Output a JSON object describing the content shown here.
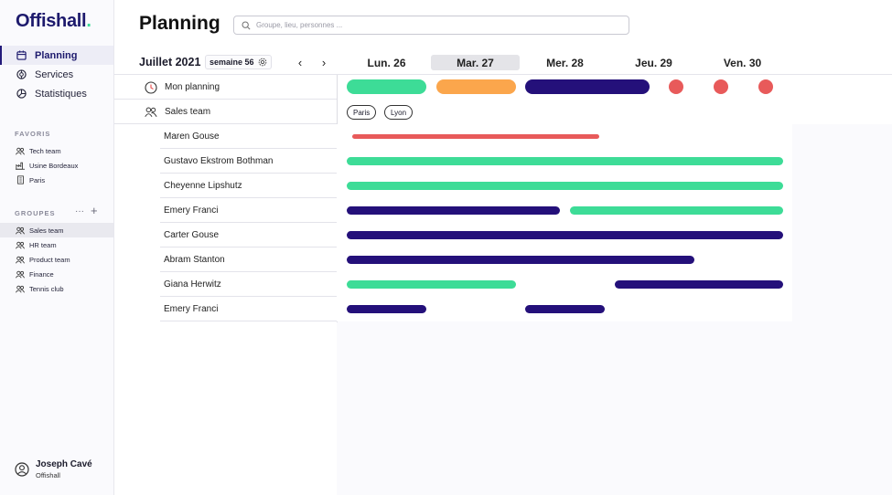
{
  "app": {
    "logo": "Offishall",
    "logo_dot": "."
  },
  "sidebar": {
    "nav": [
      {
        "label": "Planning",
        "icon": "calendar-icon",
        "active": true
      },
      {
        "label": "Services",
        "icon": "services-icon",
        "active": false
      },
      {
        "label": "Statistiques",
        "icon": "stats-icon",
        "active": false
      }
    ],
    "favoris_title": "FAVORIS",
    "favoris": [
      {
        "label": "Tech team",
        "icon": "group-icon"
      },
      {
        "label": "Usine Bordeaux",
        "icon": "factory-icon"
      },
      {
        "label": "Paris",
        "icon": "building-icon"
      }
    ],
    "groupes_title": "GROUPES",
    "group_more": "···",
    "group_add": "+",
    "groupes": [
      {
        "label": "Sales team",
        "active": true
      },
      {
        "label": "HR team",
        "active": false
      },
      {
        "label": "Product team",
        "active": false
      },
      {
        "label": "Finance",
        "active": false
      },
      {
        "label": "Tennis club",
        "active": false
      }
    ],
    "user": {
      "name": "Joseph Cavé",
      "org": "Offishall"
    }
  },
  "header": {
    "title": "Planning",
    "search_placeholder": "Groupe, lieu, personnes ..."
  },
  "week": {
    "month": "Juillet 2021",
    "badge": "semaine 56",
    "prev": "‹",
    "next": "›",
    "days": [
      {
        "label": "Lun.  26",
        "today": false
      },
      {
        "label": "Mar.  27",
        "today": true
      },
      {
        "label": "Mer.  28",
        "today": false
      },
      {
        "label": "Jeu.  29",
        "today": false
      },
      {
        "label": "Ven.  30",
        "today": false
      }
    ]
  },
  "colors": {
    "green": "#3ddc97",
    "orange": "#fba64c",
    "navy": "#24107a",
    "red": "#e85a5a"
  },
  "planning": {
    "mon_planning_label": "Mon planning",
    "sales_team_label": "Sales team",
    "locations": [
      "Paris",
      "Lyon"
    ],
    "people": [
      {
        "name": "Maren Gouse"
      },
      {
        "name": "Gustavo Ekstrom Bothman"
      },
      {
        "name": "Cheyenne Lipshutz"
      },
      {
        "name": "Emery Franci"
      },
      {
        "name": "Carter Gouse"
      },
      {
        "name": "Abram Stanton"
      },
      {
        "name": "Giana Herwitz"
      },
      {
        "name": "Emery Franci"
      }
    ]
  }
}
